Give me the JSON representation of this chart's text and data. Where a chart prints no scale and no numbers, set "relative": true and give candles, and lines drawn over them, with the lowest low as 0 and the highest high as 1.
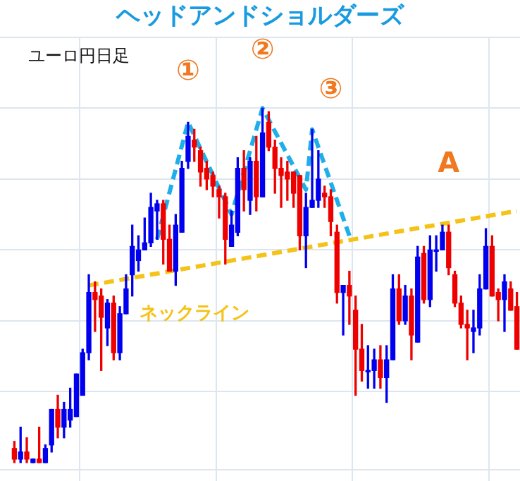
{
  "chart_data": {
    "type": "candlestick",
    "title": "ヘッドアンドショルダーズ",
    "subtitle": "ユーロ円日足",
    "relative": true,
    "grid": true,
    "tick_labels": false,
    "legend": false,
    "categories": [
      null,
      null,
      null,
      null,
      null,
      null,
      null,
      null,
      null,
      null,
      null,
      null,
      null,
      null,
      null,
      null,
      null,
      null,
      null,
      null,
      null,
      null,
      null,
      null,
      null,
      null,
      null,
      null,
      null,
      null,
      null,
      null,
      null,
      null,
      null,
      null,
      null,
      null,
      null,
      null,
      null,
      null,
      null,
      null,
      null,
      null,
      null,
      null,
      null,
      null,
      null,
      null,
      null,
      null,
      null,
      null,
      null,
      null,
      null,
      null,
      null,
      null,
      null,
      null,
      null,
      null,
      null,
      null,
      null,
      null,
      null,
      null,
      null,
      null,
      null,
      null,
      null,
      null,
      null,
      null,
      null,
      null
    ],
    "ohlc": [
      [
        0.04,
        0.06,
        0,
        0.01
      ],
      [
        0.01,
        0.1,
        0,
        0.03
      ],
      [
        0.03,
        0.07,
        0,
        0.01
      ],
      [
        0,
        0.01,
        0,
        0.01
      ],
      [
        0.01,
        0.1,
        0,
        0
      ],
      [
        0,
        0.05,
        0,
        0.04
      ],
      [
        0.05,
        0.15,
        0.03,
        0.15
      ],
      [
        0.15,
        0.19,
        0.07,
        0.1
      ],
      [
        0.1,
        0.17,
        0.07,
        0.15
      ],
      [
        0.12,
        0.21,
        0.1,
        0.15
      ],
      [
        0.13,
        0.25,
        0.13,
        0.25
      ],
      [
        0.19,
        0.32,
        0.19,
        0.31
      ],
      [
        0.31,
        0.53,
        0.29,
        0.48
      ],
      [
        0.48,
        0.51,
        0.37,
        0.46
      ],
      [
        0.47,
        0.49,
        0.26,
        0.41
      ],
      [
        0.38,
        0.46,
        0.33,
        0.45
      ],
      [
        0.45,
        0.47,
        0.29,
        0.31
      ],
      [
        0.31,
        0.44,
        0.29,
        0.42
      ],
      [
        0.42,
        0.53,
        0.42,
        0.49
      ],
      [
        0.53,
        0.67,
        0.47,
        0.61
      ],
      [
        0.57,
        0.64,
        0.54,
        0.6
      ],
      [
        0.6,
        0.69,
        0.6,
        0.62
      ],
      [
        0.62,
        0.76,
        0.61,
        0.72
      ],
      [
        0.71,
        0.74,
        0.63,
        0.73
      ],
      [
        0.73,
        0.74,
        0.56,
        0.63
      ],
      [
        0.63,
        0.67,
        0.54,
        0.54
      ],
      [
        0.54,
        0.7,
        0.5,
        0.67
      ],
      [
        0.65,
        0.85,
        0.65,
        0.83
      ],
      [
        0.85,
        0.96,
        0.83,
        0.92
      ],
      [
        0.91,
        0.94,
        0.85,
        0.89
      ],
      [
        0.88,
        0.89,
        0.78,
        0.82
      ],
      [
        0.83,
        0.85,
        0.77,
        0.8
      ],
      [
        0.81,
        0.82,
        0.75,
        0.78
      ],
      [
        0.77,
        0.78,
        0.69,
        0.75
      ],
      [
        0.75,
        0.76,
        0.56,
        0.63
      ],
      [
        0.61,
        0.71,
        0.61,
        0.67
      ],
      [
        0.65,
        0.86,
        0.64,
        0.83
      ],
      [
        0.83,
        0.88,
        0.71,
        0.77
      ],
      [
        0.74,
        0.86,
        0.7,
        0.85
      ],
      [
        0.85,
        0.92,
        0.71,
        0.75
      ],
      [
        0.75,
        1,
        0.75,
        0.93
      ],
      [
        0.96,
        0.99,
        0.88,
        0.89
      ],
      [
        0.89,
        0.91,
        0.76,
        0.83
      ],
      [
        0.83,
        0.86,
        0.72,
        0.81
      ],
      [
        0.82,
        0.85,
        0.74,
        0.8
      ],
      [
        0.82,
        0.82,
        0.72,
        0.76
      ],
      [
        0.81,
        0.81,
        0.6,
        0.64
      ],
      [
        0.64,
        0.76,
        0.55,
        0.72
      ],
      [
        0.72,
        0.94,
        0.72,
        0.74
      ],
      [
        0.74,
        0.88,
        0.72,
        0.8
      ],
      [
        0.76,
        0.78,
        0.72,
        0.75
      ],
      [
        0.75,
        0.77,
        0.64,
        0.68
      ],
      [
        0.65,
        0.67,
        0.45,
        0.48
      ],
      [
        0.48,
        0.5,
        0.36,
        0.5
      ],
      [
        0.5,
        0.54,
        0.39,
        0.47
      ],
      [
        0.43,
        0.47,
        0.19,
        0.32
      ],
      [
        0.32,
        0.39,
        0.23,
        0.26
      ],
      [
        0.26,
        0.33,
        0.21,
        0.26
      ],
      [
        0.26,
        0.32,
        0.21,
        0.29
      ],
      [
        0.29,
        0.33,
        0.21,
        0.24
      ],
      [
        0.24,
        0.33,
        0.17,
        0.29
      ],
      [
        0.29,
        0.53,
        0.29,
        0.49
      ],
      [
        0.49,
        0.53,
        0.39,
        0.4
      ],
      [
        0.4,
        0.5,
        0.39,
        0.47
      ],
      [
        0.47,
        0.49,
        0.29,
        0.36
      ],
      [
        0.34,
        0.61,
        0.34,
        0.58
      ],
      [
        0.59,
        0.61,
        0.45,
        0.46
      ],
      [
        0.46,
        0.64,
        0.44,
        0.6
      ],
      [
        0.6,
        0.64,
        0.54,
        0.6
      ],
      [
        0.6,
        0.67,
        0.6,
        0.65
      ],
      [
        0.65,
        0.67,
        0.53,
        0.55
      ],
      [
        0.53,
        0.54,
        0.44,
        0.45
      ],
      [
        0.45,
        0.47,
        0.38,
        0.39
      ],
      [
        0.39,
        0.43,
        0.29,
        0.38
      ],
      [
        0.37,
        0.43,
        0.31,
        0.38
      ],
      [
        0.38,
        0.53,
        0.36,
        0.49
      ],
      [
        0.49,
        0.66,
        0.49,
        0.61
      ],
      [
        0.61,
        0.64,
        0.47,
        0.47
      ],
      [
        0.48,
        0.49,
        0.4,
        0.46
      ],
      [
        0.46,
        0.53,
        0.37,
        0.51
      ],
      [
        0.49,
        0.51,
        0.43,
        0.43
      ],
      [
        0.44,
        0.48,
        0.32,
        0.32
      ]
    ],
    "colors": [
      "#ee0000",
      "#0000ee",
      "#ee0000",
      "#0000ee",
      "#ee0000",
      "#0000ee",
      "#0000ee",
      "#ee0000",
      "#0000ee",
      "#0000ee",
      "#0000ee",
      "#0000ee",
      "#0000ee",
      "#ee0000",
      "#ee0000",
      "#0000ee",
      "#ee0000",
      "#0000ee",
      "#0000ee",
      "#0000ee",
      "#0000ee",
      "#0000ee",
      "#0000ee",
      "#0000ee",
      "#ee0000",
      "#ee0000",
      "#0000ee",
      "#0000ee",
      "#0000ee",
      "#ee0000",
      "#ee0000",
      "#ee0000",
      "#ee0000",
      "#ee0000",
      "#ee0000",
      "#0000ee",
      "#0000ee",
      "#ee0000",
      "#0000ee",
      "#ee0000",
      "#0000ee",
      "#ee0000",
      "#ee0000",
      "#ee0000",
      "#ee0000",
      "#ee0000",
      "#ee0000",
      "#0000ee",
      "#0000ee",
      "#0000ee",
      "#ee0000",
      "#ee0000",
      "#ee0000",
      "#0000ee",
      "#ee0000",
      "#ee0000",
      "#ee0000",
      "#0000ee",
      "#0000ee",
      "#ee0000",
      "#0000ee",
      "#0000ee",
      "#ee0000",
      "#0000ee",
      "#ee0000",
      "#0000ee",
      "#ee0000",
      "#0000ee",
      "#0000ee",
      "#0000ee",
      "#ee0000",
      "#ee0000",
      "#ee0000",
      "#ee0000",
      "#0000ee",
      "#0000ee",
      "#0000ee",
      "#ee0000",
      "#ee0000",
      "#0000ee",
      "#ee0000",
      "#ee0000"
    ],
    "series": [
      {
        "type": "line",
        "color": "#1eaee8",
        "line_style": "dashed",
        "values": [
          null,
          null,
          null,
          null,
          null,
          null,
          null,
          null,
          null,
          null,
          null,
          null,
          null,
          null,
          null,
          null,
          null,
          null,
          null,
          null,
          null,
          null,
          null,
          0.63,
          null,
          null,
          null,
          null,
          0.96,
          null,
          null,
          null,
          null,
          null,
          null,
          0.7,
          null,
          null,
          null,
          null,
          1,
          null,
          null,
          null,
          null,
          null,
          null,
          0.77,
          0.94,
          null,
          null,
          null,
          null,
          null,
          0.64,
          null,
          null,
          null,
          null,
          null,
          null,
          null,
          null,
          null,
          null,
          null,
          null,
          null,
          null,
          null,
          null,
          null,
          null,
          null,
          null,
          null,
          null,
          null,
          null,
          null,
          null,
          null
        ]
      },
      {
        "type": "line",
        "color": "#f5c218",
        "line_style": "dashed",
        "values": [
          null,
          null,
          null,
          null,
          null,
          null,
          null,
          null,
          null,
          null,
          null,
          null,
          0.5,
          null,
          null,
          null,
          null,
          null,
          null,
          null,
          null,
          null,
          null,
          null,
          null,
          null,
          null,
          null,
          null,
          null,
          null,
          null,
          null,
          null,
          null,
          null,
          null,
          null,
          null,
          null,
          null,
          null,
          null,
          null,
          null,
          null,
          null,
          null,
          null,
          null,
          null,
          null,
          null,
          null,
          null,
          null,
          null,
          null,
          null,
          null,
          null,
          null,
          null,
          null,
          null,
          null,
          null,
          null,
          null,
          null,
          null,
          null,
          null,
          null,
          null,
          null,
          null,
          null,
          null,
          null,
          null,
          0.71
        ]
      }
    ],
    "annotations": [
      "①",
      "②",
      "③",
      "A",
      "ネックライン"
    ]
  }
}
